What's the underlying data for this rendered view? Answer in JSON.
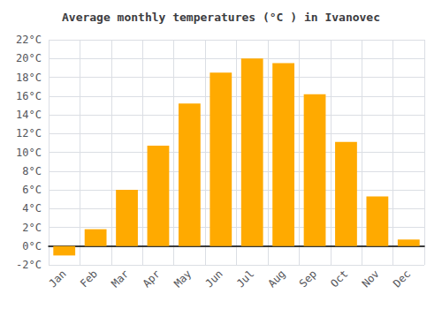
{
  "chart_data": {
    "type": "bar",
    "title": "Average monthly temperatures (°C ) in Ivanovec",
    "categories": [
      "Jan",
      "Feb",
      "Mar",
      "Apr",
      "May",
      "Jun",
      "Jul",
      "Aug",
      "Sep",
      "Oct",
      "Nov",
      "Dec"
    ],
    "values": [
      -1.0,
      1.8,
      6.0,
      10.7,
      15.2,
      18.5,
      20.0,
      19.5,
      16.2,
      11.1,
      5.3,
      0.7
    ],
    "color": "#FFAA00",
    "ylim": [
      -2,
      22
    ],
    "yticks": [
      {
        "value": -2,
        "label": "-2°C"
      },
      {
        "value": 0,
        "label": "0°C"
      },
      {
        "value": 2,
        "label": "2°C"
      },
      {
        "value": 4,
        "label": "4°C"
      },
      {
        "value": 6,
        "label": "6°C"
      },
      {
        "value": 8,
        "label": "8°C"
      },
      {
        "value": 10,
        "label": "10°C"
      },
      {
        "value": 12,
        "label": "12°C"
      },
      {
        "value": 14,
        "label": "14°C"
      },
      {
        "value": 16,
        "label": "16°C"
      },
      {
        "value": 18,
        "label": "18°C"
      },
      {
        "value": 20,
        "label": "20°C"
      },
      {
        "value": 22,
        "label": "22°C"
      }
    ],
    "grid": true
  }
}
